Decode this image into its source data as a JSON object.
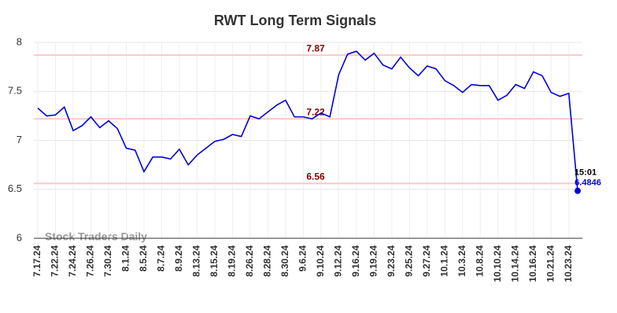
{
  "chart_data": {
    "type": "line",
    "title": "RWT Long Term Signals",
    "watermark": "Stock Traders Daily",
    "categories": [
      "7.17.24",
      null,
      "7.22.24",
      null,
      "7.24.24",
      null,
      "7.26.24",
      null,
      "7.30.24",
      null,
      "8.1.24",
      null,
      "8.5.24",
      null,
      "8.7.24",
      null,
      "8.9.24",
      null,
      "8.13.24",
      null,
      "8.15.24",
      null,
      "8.19.24",
      null,
      "8.26.24",
      null,
      "8.28.24",
      null,
      "8.30.24",
      null,
      "9.6.24",
      null,
      "9.10.24",
      null,
      "9.12.24",
      null,
      "9.16.24",
      null,
      "9.19.24",
      null,
      "9.23.24",
      null,
      "9.25.24",
      null,
      "9.27.24",
      null,
      "10.1.24",
      null,
      "10.3.24",
      null,
      "10.8.24",
      null,
      "10.10.24",
      null,
      "10.14.24",
      null,
      "10.16.24",
      null,
      "10.21.24",
      null,
      "10.23.24",
      null
    ],
    "series": [
      {
        "name": "RWT",
        "color": "#0000dd",
        "values": [
          7.33,
          7.25,
          7.26,
          7.34,
          7.1,
          7.15,
          7.24,
          7.13,
          7.2,
          7.12,
          6.92,
          6.9,
          6.68,
          6.83,
          6.83,
          6.81,
          6.91,
          6.75,
          6.85,
          6.92,
          6.99,
          7.01,
          7.06,
          7.04,
          7.25,
          7.22,
          7.29,
          7.36,
          7.41,
          7.24,
          7.24,
          7.22,
          7.28,
          7.24,
          7.67,
          7.88,
          7.91,
          7.82,
          7.89,
          7.77,
          7.73,
          7.85,
          7.74,
          7.66,
          7.76,
          7.73,
          7.61,
          7.56,
          7.49,
          7.57,
          7.56,
          7.56,
          7.41,
          7.46,
          7.57,
          7.53,
          7.7,
          7.66,
          7.49,
          7.45,
          7.48,
          6.4846
        ]
      }
    ],
    "last_time": "15:01",
    "hlines": [
      {
        "value": 7.87,
        "color": "#ffc8c8",
        "label_color": "#8b0000"
      },
      {
        "value": 7.22,
        "color": "#ffc8c8",
        "label_color": "#8b0000"
      },
      {
        "value": 6.56,
        "color": "#ffc8c8",
        "label_color": "#8b0000"
      }
    ],
    "ylim": [
      6,
      8
    ],
    "yticks": [
      6,
      6.5,
      7,
      7.5,
      8
    ],
    "grid": true
  }
}
